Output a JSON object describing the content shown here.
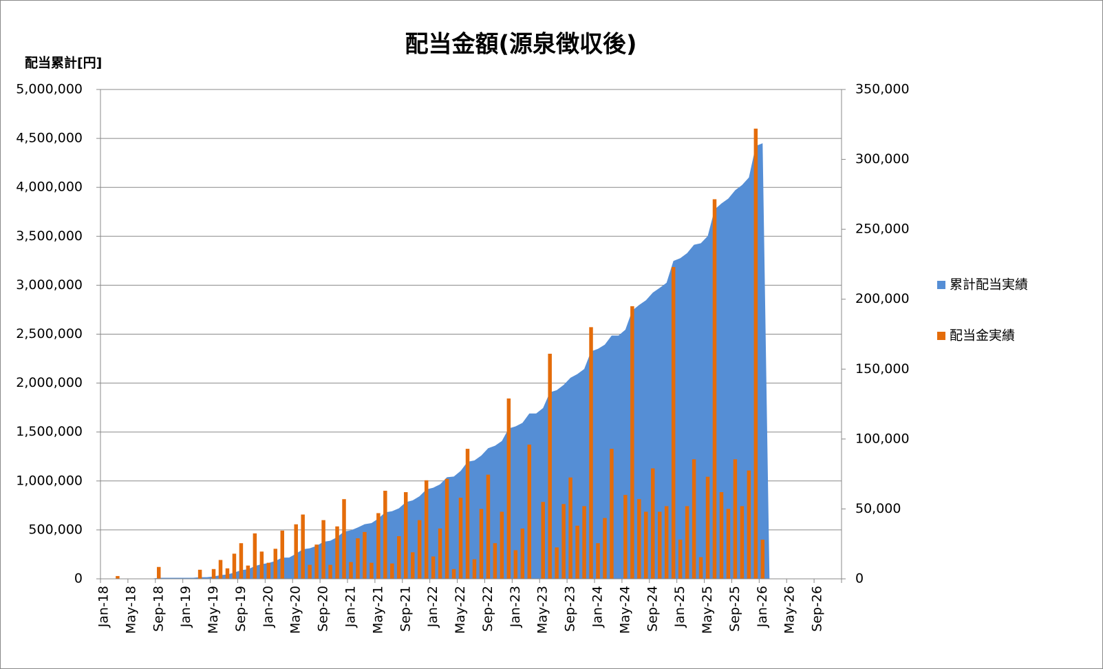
{
  "chart_data": {
    "type": "bar-area",
    "title": "配当金額(源泉徴収後)",
    "y_label": "配当累計[円]",
    "grid": true,
    "legend": "right",
    "categories": [
      "Jan-18",
      null,
      null,
      null,
      "May-18",
      null,
      null,
      null,
      "Sep-18",
      null,
      null,
      null,
      "Jan-19",
      null,
      null,
      null,
      "May-19",
      null,
      null,
      null,
      "Sep-19",
      null,
      null,
      null,
      "Jan-20",
      null,
      null,
      null,
      "May-20",
      null,
      null,
      null,
      "Sep-20",
      null,
      null,
      null,
      "Jan-21",
      null,
      null,
      null,
      "May-21",
      null,
      null,
      null,
      "Sep-21",
      null,
      null,
      null,
      "Jan-22",
      null,
      null,
      null,
      "May-22",
      null,
      null,
      null,
      "Sep-22",
      null,
      null,
      null,
      "Jan-23",
      null,
      null,
      null,
      "May-23",
      null,
      null,
      null,
      "Sep-23",
      null,
      null,
      null,
      "Jan-24",
      null,
      null,
      null,
      "May-24",
      null,
      null,
      null,
      "Sep-24",
      null,
      null,
      null,
      "Jan-25",
      null,
      null,
      null,
      "May-25",
      null,
      null,
      null,
      "Sep-25",
      null,
      null,
      null,
      "Jan-26",
      null,
      null,
      null,
      "May-26",
      null,
      null,
      null,
      "Sep-26",
      null,
      null,
      null
    ],
    "ylim": [
      0,
      5000000
    ],
    "yticks": [
      0,
      {
        "value": 500000,
        "label": "500,000"
      },
      {
        "value": 1000000,
        "label": "1,000,000"
      },
      {
        "value": 1500000,
        "label": "1,500,000"
      },
      {
        "value": 2000000,
        "label": "2,000,000"
      },
      {
        "value": 2500000,
        "label": "2,500,000"
      },
      {
        "value": 3000000,
        "label": "3,000,000"
      },
      {
        "value": 3500000,
        "label": "3,500,000"
      },
      {
        "value": 4000000,
        "label": "4,000,000"
      },
      {
        "value": 4500000,
        "label": "4,500,000"
      },
      {
        "value": 5000000,
        "label": "5,000,000"
      }
    ],
    "y2lim": [
      0,
      350000
    ],
    "y2ticks": [
      0,
      {
        "value": 50000,
        "label": "50,000"
      },
      {
        "value": 100000,
        "label": "100,000"
      },
      {
        "value": 150000,
        "label": "150,000"
      },
      {
        "value": 200000,
        "label": "200,000"
      },
      {
        "value": 250000,
        "label": "250,000"
      },
      {
        "value": 300000,
        "label": "300,000"
      },
      {
        "value": 350000,
        "label": "350,000"
      }
    ],
    "series": [
      {
        "name": "累計配当実績",
        "type": "area",
        "color": "#558ed5",
        "values": [
          0,
          0,
          2000,
          2000,
          2000,
          2000,
          2000,
          2000,
          10500,
          10500,
          10500,
          10500,
          10500,
          10500,
          17000,
          17000,
          24000,
          37500,
          45000,
          63000,
          88500,
          98000,
          130500,
          150000,
          161500,
          183000,
          217500,
          217500,
          256500,
          302500,
          312500,
          337000,
          379000,
          389000,
          426500,
          483500,
          495500,
          524500,
          558000,
          569500,
          616500,
          679500,
          690500,
          721000,
          783000,
          802000,
          844000,
          914500,
          930500,
          966500,
          1038000,
          1045000,
          1103000,
          1196000,
          1210000,
          1260000,
          1334500,
          1360000,
          1408000,
          1537000,
          1557500,
          1593500,
          1689500,
          1689500,
          1744500,
          1905500,
          1928000,
          1981500,
          2054000,
          2092000,
          2144000,
          2324000,
          2349500,
          2393000,
          2486000,
          2486000,
          2546000,
          2741000,
          2798000,
          2846000,
          2925000,
          2973000,
          3025000,
          3248000,
          3276000,
          3328000,
          3413500,
          3429000,
          3502000,
          3773500,
          3835500,
          3885500,
          3971000,
          4023000,
          4100500,
          4422500,
          4450500,
          0,
          null,
          null,
          null,
          null,
          null,
          null,
          null,
          null,
          null,
          null
        ]
      },
      {
        "name": "配当金実績",
        "type": "bar",
        "axis": "y2",
        "color": "#e46c0a",
        "values": [
          null,
          null,
          2000,
          null,
          null,
          null,
          null,
          null,
          8500,
          null,
          null,
          null,
          null,
          null,
          6500,
          null,
          7000,
          13500,
          7500,
          18000,
          25500,
          9500,
          32500,
          19500,
          11500,
          21500,
          34500,
          null,
          39000,
          46000,
          10000,
          24500,
          42000,
          10000,
          37500,
          57000,
          12000,
          29000,
          33500,
          11500,
          47000,
          63000,
          11000,
          30500,
          62000,
          19000,
          42000,
          70500,
          16000,
          36000,
          71500,
          7000,
          58000,
          93000,
          14000,
          50000,
          74500,
          25500,
          48000,
          129000,
          20500,
          36000,
          96000,
          null,
          55000,
          161000,
          22500,
          53500,
          72500,
          38000,
          52000,
          180000,
          25500,
          43500,
          93000,
          null,
          60000,
          195000,
          57000,
          48000,
          79000,
          48000,
          52000,
          223000,
          28000,
          52000,
          85500,
          15500,
          73000,
          271500,
          62000,
          50000,
          85500,
          52000,
          77500,
          322000,
          28000,
          null,
          null,
          null,
          null,
          null,
          null,
          null,
          null,
          null,
          null,
          null
        ]
      }
    ]
  }
}
